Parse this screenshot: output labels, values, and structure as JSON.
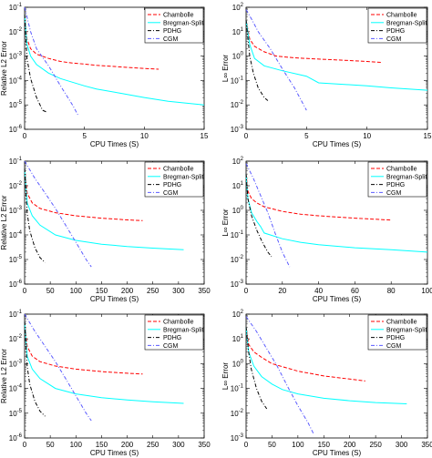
{
  "legend_labels": [
    "Chambolle",
    "Bregman-Split",
    "PDHG",
    "CGM"
  ],
  "series_colors": [
    "#ff0000",
    "#00ffff",
    "#000000",
    "#5a5aff"
  ],
  "series_styles": [
    "dashed",
    "solid",
    "dashdot",
    "dashdot"
  ],
  "chart_data": [
    {
      "type": "line",
      "xlabel": "CPU Times (S)",
      "ylabel": "Relative L2 Error",
      "yscale": "log",
      "xlim": [
        0,
        15
      ],
      "ylim": [
        1e-06,
        0.1
      ],
      "xticks": [
        0,
        5,
        10,
        15
      ],
      "yticks": [
        1e-06,
        1e-05,
        0.0001,
        0.001,
        0.01,
        0.1
      ],
      "legend": "top-right",
      "series": [
        {
          "name": "Chambolle",
          "x": [
            0,
            0.2,
            0.5,
            1,
            2,
            3,
            4,
            5,
            6,
            8,
            10,
            11.2
          ],
          "y": [
            0.05,
            0.005,
            0.002,
            0.0012,
            0.0008,
            0.0006,
            0.00052,
            0.00047,
            0.00042,
            0.00036,
            0.00031,
            0.00029
          ]
        },
        {
          "name": "Bregman-Split",
          "x": [
            0,
            0.2,
            0.5,
            1,
            2,
            3,
            4,
            5,
            6,
            8,
            10,
            12,
            15
          ],
          "y": [
            0.05,
            0.003,
            0.001,
            0.00045,
            0.0002,
            0.00012,
            8.5e-05,
            6e-05,
            4.5e-05,
            3e-05,
            2e-05,
            1.4e-05,
            1e-05
          ]
        },
        {
          "name": "PDHG",
          "x": [
            0,
            0.2,
            0.5,
            1,
            1.5,
            1.8
          ],
          "y": [
            0.05,
            0.0008,
            0.00012,
            2e-05,
            6e-06,
            5.2e-06
          ]
        },
        {
          "name": "CGM",
          "x": [
            0,
            0.5,
            1,
            2,
            3,
            4,
            4.5
          ],
          "y": [
            0.1,
            0.01,
            0.002,
            0.0004,
            6e-05,
            1e-05,
            3.5e-06
          ]
        }
      ]
    },
    {
      "type": "line",
      "xlabel": "CPU Times (S)",
      "ylabel": "L∞ Error",
      "yscale": "log",
      "xlim": [
        0,
        15
      ],
      "ylim": [
        0.001,
        100.0
      ],
      "xticks": [
        0,
        5,
        10,
        15
      ],
      "yticks": [
        0.001,
        0.01,
        0.1,
        1.0,
        10.0,
        100.0
      ],
      "legend": "top-right",
      "series": [
        {
          "name": "Chambolle",
          "x": [
            0,
            0.3,
            0.7,
            1.5,
            2.5,
            4,
            6,
            8,
            10,
            11.2
          ],
          "y": [
            30,
            5,
            2.5,
            1.5,
            1.0,
            0.85,
            0.75,
            0.68,
            0.6,
            0.55
          ]
        },
        {
          "name": "Bregman-Split",
          "x": [
            0,
            0.3,
            0.7,
            1.5,
            3,
            5,
            6,
            8,
            10,
            12,
            15
          ],
          "y": [
            30,
            3,
            0.8,
            0.4,
            0.25,
            0.15,
            0.08,
            0.07,
            0.06,
            0.05,
            0.04
          ]
        },
        {
          "name": "PDHG",
          "x": [
            0,
            0.3,
            0.6,
            1,
            1.5,
            1.8
          ],
          "y": [
            30,
            1.0,
            0.2,
            0.05,
            0.02,
            0.015
          ]
        },
        {
          "name": "CGM",
          "x": [
            0,
            0.5,
            1,
            2,
            3,
            4,
            5
          ],
          "y": [
            80,
            30,
            10,
            2,
            0.3,
            0.05,
            0.006
          ]
        }
      ]
    },
    {
      "type": "line",
      "xlabel": "CPU Times (S)",
      "ylabel": "Relative L2 Error",
      "yscale": "log",
      "xlim": [
        0,
        350
      ],
      "ylim": [
        1e-06,
        0.1
      ],
      "xticks": [
        0,
        50,
        100,
        150,
        200,
        250,
        300,
        350
      ],
      "yticks": [
        1e-06,
        1e-05,
        0.0001,
        0.001,
        0.01,
        0.1
      ],
      "legend": "top-right",
      "series": [
        {
          "name": "Chambolle",
          "x": [
            0,
            5,
            15,
            30,
            60,
            100,
            150,
            200,
            230
          ],
          "y": [
            0.05,
            0.005,
            0.002,
            0.0012,
            0.0008,
            0.0006,
            0.00048,
            0.00041,
            0.00038
          ]
        },
        {
          "name": "Bregman-Split",
          "x": [
            0,
            5,
            15,
            30,
            60,
            100,
            150,
            200,
            250,
            310
          ],
          "y": [
            0.05,
            0.002,
            0.0006,
            0.00025,
            0.0001,
            6e-05,
            4.2e-05,
            3.4e-05,
            2.9e-05,
            2.5e-05
          ]
        },
        {
          "name": "PDHG",
          "x": [
            0,
            5,
            10,
            20,
            30,
            40
          ],
          "y": [
            0.05,
            0.0008,
            0.00015,
            3e-05,
            1.2e-05,
            7.5e-06
          ]
        },
        {
          "name": "CGM",
          "x": [
            0,
            20,
            40,
            60,
            80,
            100,
            120,
            130
          ],
          "y": [
            0.1,
            0.02,
            0.005,
            0.0012,
            0.00025,
            5e-05,
            1e-05,
            5e-06
          ]
        }
      ]
    },
    {
      "type": "line",
      "xlabel": "CPU Times (S)",
      "ylabel": "L∞ Error",
      "yscale": "log",
      "xlim": [
        0,
        100
      ],
      "ylim": [
        0.001,
        100.0
      ],
      "xticks": [
        0,
        20,
        40,
        60,
        80,
        100
      ],
      "yticks": [
        0.001,
        0.01,
        0.1,
        1.0,
        10.0,
        100.0
      ],
      "legend": "top-right",
      "series": [
        {
          "name": "Chambolle",
          "x": [
            0,
            1,
            3,
            6,
            10,
            20,
            30,
            40,
            60,
            80
          ],
          "y": [
            30,
            6,
            3,
            2,
            1.4,
            0.9,
            0.7,
            0.6,
            0.48,
            0.4
          ]
        },
        {
          "name": "Bregman-Split",
          "x": [
            0,
            1,
            3,
            6,
            8,
            10,
            20,
            30,
            40,
            60,
            80,
            100
          ],
          "y": [
            30,
            3,
            0.8,
            0.35,
            0.22,
            0.12,
            0.07,
            0.05,
            0.04,
            0.03,
            0.025,
            0.02
          ]
        },
        {
          "name": "PDHG",
          "x": [
            0,
            1,
            3,
            6,
            9,
            12,
            14
          ],
          "y": [
            30,
            3,
            0.6,
            0.15,
            0.05,
            0.02,
            0.013
          ]
        },
        {
          "name": "CGM",
          "x": [
            0,
            4,
            8,
            12,
            16,
            20,
            24
          ],
          "y": [
            80,
            20,
            4,
            0.8,
            0.12,
            0.02,
            0.005
          ]
        }
      ]
    },
    {
      "type": "line",
      "xlabel": "CPU Times (S)",
      "ylabel": "Relative L2 Error",
      "yscale": "log",
      "xlim": [
        0,
        350
      ],
      "ylim": [
        1e-06,
        0.1
      ],
      "xticks": [
        0,
        50,
        100,
        150,
        200,
        250,
        300,
        350
      ],
      "yticks": [
        1e-06,
        1e-05,
        0.0001,
        0.001,
        0.01,
        0.1
      ],
      "legend": "top-right",
      "series": [
        {
          "name": "Chambolle",
          "x": [
            0,
            5,
            15,
            30,
            60,
            100,
            150,
            200,
            230
          ],
          "y": [
            0.05,
            0.005,
            0.002,
            0.0012,
            0.0008,
            0.0006,
            0.00048,
            0.00041,
            0.00038
          ]
        },
        {
          "name": "Bregman-Split",
          "x": [
            0,
            5,
            15,
            30,
            60,
            100,
            150,
            200,
            250,
            310
          ],
          "y": [
            0.05,
            0.002,
            0.0006,
            0.00025,
            0.0001,
            6e-05,
            4.2e-05,
            3.4e-05,
            2.9e-05,
            2.5e-05
          ]
        },
        {
          "name": "PDHG",
          "x": [
            0,
            5,
            10,
            20,
            30,
            40
          ],
          "y": [
            0.05,
            0.0008,
            0.00015,
            3e-05,
            1.2e-05,
            7.5e-06
          ]
        },
        {
          "name": "CGM",
          "x": [
            0,
            20,
            40,
            60,
            80,
            100,
            120,
            130
          ],
          "y": [
            0.1,
            0.02,
            0.005,
            0.0012,
            0.00025,
            5e-05,
            1e-05,
            5e-06
          ]
        }
      ]
    },
    {
      "type": "line",
      "xlabel": "CPU Times (S)",
      "ylabel": "L∞ Error",
      "yscale": "log",
      "xlim": [
        0,
        350
      ],
      "ylim": [
        0.001,
        100.0
      ],
      "xticks": [
        0,
        50,
        100,
        150,
        200,
        250,
        300,
        350
      ],
      "yticks": [
        0.001,
        0.01,
        0.1,
        1.0,
        10.0,
        100.0
      ],
      "legend": "top-right",
      "series": [
        {
          "name": "Chambolle",
          "x": [
            0,
            5,
            15,
            30,
            50,
            100,
            150,
            200,
            230
          ],
          "y": [
            30,
            6,
            3,
            1.8,
            1.0,
            0.5,
            0.32,
            0.24,
            0.2
          ]
        },
        {
          "name": "Bregman-Split",
          "x": [
            0,
            5,
            15,
            30,
            50,
            70,
            100,
            150,
            200,
            250,
            310
          ],
          "y": [
            30,
            3,
            0.8,
            0.3,
            0.15,
            0.09,
            0.06,
            0.04,
            0.032,
            0.027,
            0.024
          ]
        },
        {
          "name": "PDHG",
          "x": [
            0,
            5,
            10,
            20,
            30,
            40
          ],
          "y": [
            30,
            3,
            0.6,
            0.1,
            0.03,
            0.015
          ]
        },
        {
          "name": "CGM",
          "x": [
            0,
            20,
            40,
            60,
            80,
            100,
            120,
            130
          ],
          "y": [
            80,
            20,
            4,
            0.8,
            0.12,
            0.02,
            0.004,
            0.0015
          ]
        }
      ]
    }
  ]
}
